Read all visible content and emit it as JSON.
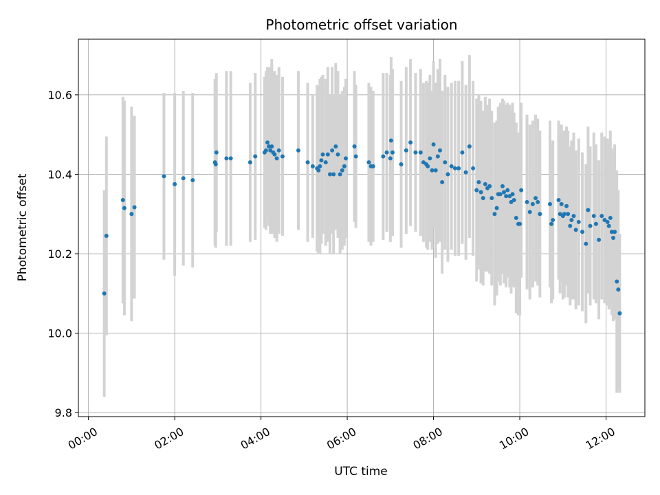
{
  "chart_data": {
    "type": "scatter",
    "title": "Photometric offset variation",
    "xlabel": "UTC time",
    "ylabel": "Photometric offset",
    "x_unit": "UTC time of day (HH:MM)",
    "xlim": [
      "-00:14",
      "12:54"
    ],
    "ylim": [
      9.79,
      10.74
    ],
    "xticks": [
      "00:00",
      "02:00",
      "04:00",
      "06:00",
      "08:00",
      "10:00",
      "12:00"
    ],
    "yticks": [
      9.8,
      10.0,
      10.2,
      10.4,
      10.6
    ],
    "grid": true,
    "colors": {
      "points": "#1f77b4",
      "errorbars": "#d3d3d3",
      "grid": "#b0b0b0"
    },
    "series": [
      {
        "x": [
          "00:22",
          "00:25",
          "00:48",
          "00:50",
          "01:00",
          "01:04",
          "01:45",
          "02:00",
          "02:12",
          "02:25",
          "02:56",
          "02:57",
          "02:58",
          "03:12",
          "03:18",
          "03:45",
          "03:52",
          "04:05",
          "04:07",
          "04:09",
          "04:11",
          "04:13",
          "04:15",
          "04:17",
          "04:19",
          "04:22",
          "04:25",
          "04:30",
          "04:52",
          "05:05",
          "05:12",
          "05:18",
          "05:20",
          "05:22",
          "05:24",
          "05:26",
          "05:30",
          "05:33",
          "05:36",
          "05:39",
          "05:41",
          "05:44",
          "05:47",
          "05:50",
          "05:53",
          "05:56",
          "05:58",
          "06:10",
          "06:12",
          "06:30",
          "06:33",
          "06:36",
          "06:50",
          "06:55",
          "07:00",
          "07:01",
          "07:03",
          "07:15",
          "07:22",
          "07:28",
          "07:35",
          "07:42",
          "07:46",
          "07:50",
          "07:52",
          "07:55",
          "07:58",
          "08:00",
          "08:03",
          "08:06",
          "08:09",
          "08:12",
          "08:16",
          "08:20",
          "08:25",
          "08:30",
          "08:35",
          "08:40",
          "08:45",
          "08:50",
          "08:55",
          "09:00",
          "09:03",
          "09:06",
          "09:09",
          "09:12",
          "09:15",
          "09:18",
          "09:21",
          "09:25",
          "09:28",
          "09:30",
          "09:33",
          "09:36",
          "09:38",
          "09:41",
          "09:43",
          "09:46",
          "09:48",
          "09:50",
          "09:52",
          "09:55",
          "09:58",
          "10:00",
          "10:02",
          "10:10",
          "10:14",
          "10:18",
          "10:22",
          "10:25",
          "10:28",
          "10:42",
          "10:44",
          "10:46",
          "10:54",
          "10:56",
          "10:58",
          "11:00",
          "11:02",
          "11:05",
          "11:07",
          "11:10",
          "11:12",
          "11:15",
          "11:18",
          "11:22",
          "11:27",
          "11:32",
          "11:35",
          "11:38",
          "11:43",
          "11:46",
          "11:50",
          "11:54",
          "11:58",
          "12:02",
          "12:04",
          "12:06",
          "12:08",
          "12:10",
          "12:12",
          "12:15",
          "12:17",
          "12:19"
        ],
        "y": [
          10.1,
          10.245,
          10.335,
          10.315,
          10.3,
          10.317,
          10.395,
          10.375,
          10.39,
          10.385,
          10.43,
          10.425,
          10.455,
          10.44,
          10.44,
          10.43,
          10.445,
          10.455,
          10.46,
          10.48,
          10.47,
          10.46,
          10.47,
          10.455,
          10.45,
          10.44,
          10.46,
          10.445,
          10.46,
          10.43,
          10.42,
          10.415,
          10.41,
          10.42,
          10.435,
          10.45,
          10.43,
          10.45,
          10.4,
          10.46,
          10.4,
          10.47,
          10.45,
          10.4,
          10.41,
          10.42,
          10.44,
          10.47,
          10.445,
          10.43,
          10.42,
          10.42,
          10.445,
          10.455,
          10.44,
          10.485,
          10.455,
          10.425,
          10.46,
          10.48,
          10.455,
          10.455,
          10.43,
          10.425,
          10.42,
          10.44,
          10.41,
          10.475,
          10.41,
          10.445,
          10.46,
          10.38,
          10.43,
          10.4,
          10.42,
          10.415,
          10.415,
          10.455,
          10.405,
          10.47,
          10.415,
          10.36,
          10.38,
          10.355,
          10.34,
          10.375,
          10.365,
          10.37,
          10.34,
          10.3,
          10.315,
          10.35,
          10.35,
          10.37,
          10.355,
          10.345,
          10.36,
          10.345,
          10.33,
          10.35,
          10.335,
          10.29,
          10.275,
          10.275,
          10.36,
          10.33,
          10.305,
          10.325,
          10.34,
          10.33,
          10.3,
          10.325,
          10.275,
          10.285,
          10.335,
          10.3,
          10.325,
          10.295,
          10.3,
          10.32,
          10.3,
          10.27,
          10.285,
          10.295,
          10.26,
          10.28,
          10.255,
          10.225,
          10.31,
          10.27,
          10.295,
          10.275,
          10.235,
          10.295,
          10.285,
          10.28,
          10.27,
          10.29,
          10.255,
          10.24,
          10.255,
          10.13,
          10.11,
          10.05
        ],
        "yerr": [
          0.26,
          0.25,
          0.26,
          0.27,
          0.27,
          0.23,
          0.21,
          0.23,
          0.22,
          0.22,
          0.21,
          0.21,
          0.2,
          0.22,
          0.22,
          0.2,
          0.21,
          0.19,
          0.2,
          0.19,
          0.2,
          0.21,
          0.22,
          0.2,
          0.21,
          0.21,
          0.21,
          0.2,
          0.2,
          0.2,
          0.18,
          0.21,
          0.21,
          0.22,
          0.21,
          0.2,
          0.21,
          0.22,
          0.2,
          0.21,
          0.2,
          0.21,
          0.21,
          0.2,
          0.2,
          0.2,
          0.2,
          0.19,
          0.18,
          0.2,
          0.2,
          0.19,
          0.21,
          0.2,
          0.21,
          0.21,
          0.21,
          0.21,
          0.21,
          0.21,
          0.2,
          0.21,
          0.2,
          0.21,
          0.21,
          0.21,
          0.2,
          0.21,
          0.22,
          0.22,
          0.23,
          0.23,
          0.22,
          0.22,
          0.21,
          0.22,
          0.22,
          0.23,
          0.22,
          0.23,
          0.22,
          0.23,
          0.22,
          0.23,
          0.22,
          0.22,
          0.21,
          0.22,
          0.22,
          0.23,
          0.22,
          0.22,
          0.23,
          0.22,
          0.23,
          0.23,
          0.22,
          0.23,
          0.23,
          0.23,
          0.22,
          0.24,
          0.23,
          0.23,
          0.22,
          0.22,
          0.22,
          0.21,
          0.21,
          0.21,
          0.21,
          0.21,
          0.2,
          0.2,
          0.2,
          0.2,
          0.2,
          0.21,
          0.21,
          0.2,
          0.21,
          0.2,
          0.2,
          0.21,
          0.2,
          0.21,
          0.2,
          0.2,
          0.21,
          0.2,
          0.21,
          0.2,
          0.2,
          0.21,
          0.21,
          0.21,
          0.21,
          0.22,
          0.21,
          0.21,
          0.22,
          0.28,
          0.25,
          0.2
        ]
      }
    ]
  }
}
